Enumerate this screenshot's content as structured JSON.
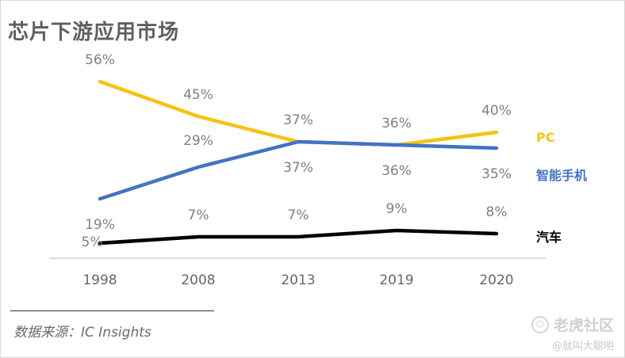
{
  "title": "芯片下游应用市场",
  "source": "数据来源：IC Insights",
  "watermark": {
    "brand": "老虎社区",
    "handle": "@就叫大聪明"
  },
  "chart_data": {
    "type": "line",
    "categories": [
      "1998",
      "2008",
      "2013",
      "2019",
      "2020"
    ],
    "series": [
      {
        "name": "PC",
        "values": [
          56,
          45,
          37,
          36,
          40
        ],
        "labels": [
          "56%",
          "45%",
          "37%",
          "36%",
          "40%"
        ],
        "color": "#f5c211"
      },
      {
        "name": "智能手机",
        "values": [
          19,
          29,
          37,
          36,
          35
        ],
        "labels": [
          "19%",
          "29%",
          "37%",
          "36%",
          "35%"
        ],
        "color": "#4472c4"
      },
      {
        "name": "汽车",
        "values": [
          5,
          7,
          7,
          9,
          8
        ],
        "labels": [
          "5%",
          "7%",
          "7%",
          "9%",
          "8%"
        ],
        "color": "#000000"
      }
    ],
    "legend": "right, end of each line",
    "label_color": "#808080",
    "grid": false
  }
}
